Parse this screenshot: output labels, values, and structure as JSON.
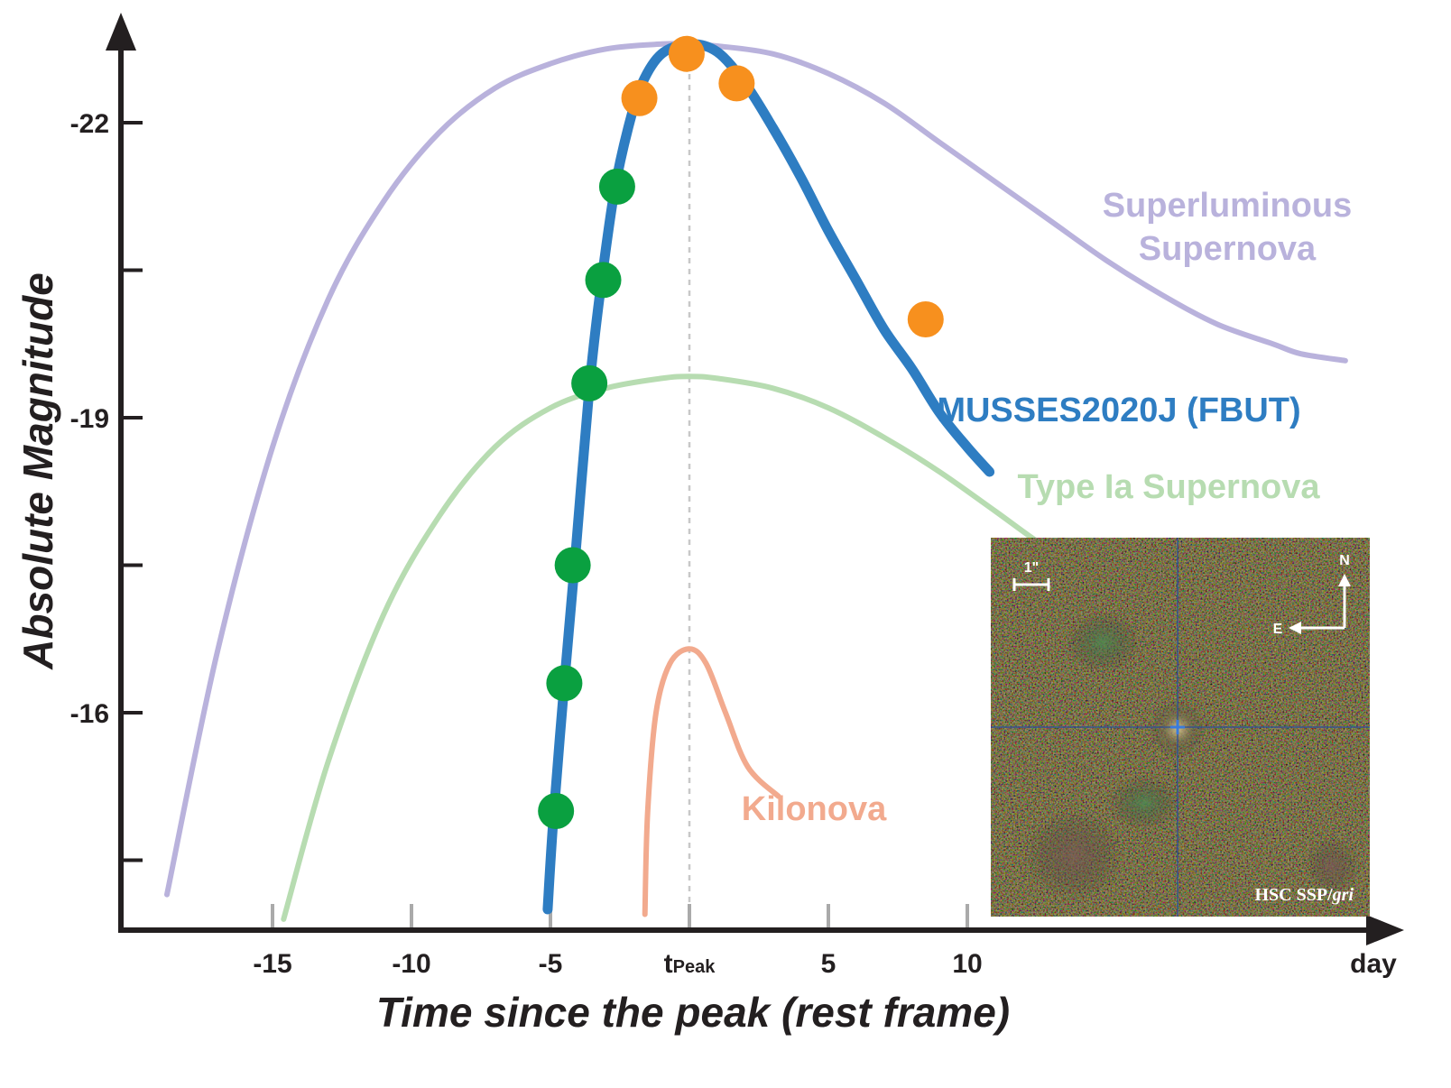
{
  "chart_data": {
    "type": "line",
    "xlabel": "Time since the peak (rest frame)",
    "ylabel": "Absolute Magnitude",
    "x_unit": "day",
    "x_range": [
      -20,
      26
    ],
    "y_range": [
      -14.0,
      -23.0
    ],
    "y_inverted": true,
    "x_ticks": [
      {
        "value": -15,
        "label": "-15"
      },
      {
        "value": -10,
        "label": "-10"
      },
      {
        "value": -5,
        "label": "-5"
      },
      {
        "value": 0,
        "label": "t",
        "sub": "Peak"
      },
      {
        "value": 5,
        "label": "5"
      },
      {
        "value": 10,
        "label": "10"
      }
    ],
    "y_major_ticks": [
      {
        "value": -22,
        "label": "-22"
      },
      {
        "value": -19,
        "label": "-19"
      },
      {
        "value": -16,
        "label": "-16"
      }
    ],
    "y_minor_ticks": [
      -20.5,
      -17.5,
      -14.5
    ],
    "peak_line": {
      "x": 0,
      "color": "#c8c8c8"
    },
    "series": [
      {
        "name": "Superluminous Supernova",
        "label_lines": [
          "Superluminous",
          "Supernova"
        ],
        "color": "#b9b2dc",
        "curve": [
          [
            -18.8,
            -14.15
          ],
          [
            -17,
            -16.6
          ],
          [
            -15,
            -18.7
          ],
          [
            -13,
            -20.2
          ],
          [
            -11,
            -21.2
          ],
          [
            -9,
            -21.9
          ],
          [
            -7,
            -22.35
          ],
          [
            -5,
            -22.6
          ],
          [
            -3,
            -22.75
          ],
          [
            -1,
            -22.8
          ],
          [
            0,
            -22.8
          ],
          [
            1,
            -22.78
          ],
          [
            3,
            -22.7
          ],
          [
            5,
            -22.5
          ],
          [
            7,
            -22.2
          ],
          [
            9,
            -21.8
          ],
          [
            11,
            -21.4
          ],
          [
            13,
            -21.0
          ],
          [
            15,
            -20.6
          ],
          [
            17,
            -20.25
          ],
          [
            19,
            -19.95
          ],
          [
            21,
            -19.75
          ],
          [
            22,
            -19.65
          ],
          [
            23.6,
            -19.58
          ]
        ]
      },
      {
        "name": "Type Ia Supernova",
        "label_lines": [
          "Type Ia Supernova"
        ],
        "color": "#b7dcb1",
        "curve": [
          [
            -14.6,
            -13.9
          ],
          [
            -13,
            -15.5
          ],
          [
            -11,
            -17.0
          ],
          [
            -9,
            -18.0
          ],
          [
            -7,
            -18.7
          ],
          [
            -5,
            -19.1
          ],
          [
            -3,
            -19.3
          ],
          [
            -1,
            -19.4
          ],
          [
            0,
            -19.42
          ],
          [
            1,
            -19.4
          ],
          [
            3,
            -19.3
          ],
          [
            5,
            -19.1
          ],
          [
            7,
            -18.8
          ],
          [
            9,
            -18.45
          ],
          [
            11,
            -18.05
          ],
          [
            13,
            -17.65
          ],
          [
            15,
            -17.35
          ],
          [
            16,
            -17.2
          ],
          [
            17,
            -17.05
          ],
          [
            15.5,
            -17.25
          ]
        ]
      },
      {
        "name": "Kilonova",
        "label_lines": [
          "Kilonova"
        ],
        "color": "#f2aa8e",
        "curve": [
          [
            -1.6,
            -13.95
          ],
          [
            -1.5,
            -15.0
          ],
          [
            -1.2,
            -16.0
          ],
          [
            -0.7,
            -16.5
          ],
          [
            0,
            -16.65
          ],
          [
            0.6,
            -16.5
          ],
          [
            1.3,
            -16.0
          ],
          [
            2.1,
            -15.45
          ],
          [
            3.2,
            -15.15
          ]
        ]
      },
      {
        "name": "MUSSES2020J (FBUT)",
        "label_lines": [
          "MUSSES2020J (FBUT)"
        ],
        "color": "#2e7dc2",
        "curve": [
          [
            -5.1,
            -14.0
          ],
          [
            -4.9,
            -14.9
          ],
          [
            -4.5,
            -16.3
          ],
          [
            -4.1,
            -17.6
          ],
          [
            -3.6,
            -19.3
          ],
          [
            -3.2,
            -20.3
          ],
          [
            -2.7,
            -21.3
          ],
          [
            -2.2,
            -21.95
          ],
          [
            -1.7,
            -22.4
          ],
          [
            -1,
            -22.7
          ],
          [
            0,
            -22.8
          ],
          [
            1,
            -22.72
          ],
          [
            2,
            -22.4
          ],
          [
            3,
            -21.95
          ],
          [
            4,
            -21.45
          ],
          [
            5,
            -20.9
          ],
          [
            6,
            -20.4
          ],
          [
            7,
            -19.9
          ],
          [
            8,
            -19.5
          ],
          [
            9,
            -19.05
          ],
          [
            10,
            -18.7
          ],
          [
            10.8,
            -18.45
          ]
        ],
        "points": [
          {
            "x": -4.8,
            "y": -15.0,
            "color": "#0aa040"
          },
          {
            "x": -4.5,
            "y": -16.3,
            "color": "#0aa040"
          },
          {
            "x": -4.2,
            "y": -17.5,
            "color": "#0aa040"
          },
          {
            "x": -3.6,
            "y": -19.35,
            "color": "#0aa040"
          },
          {
            "x": -3.1,
            "y": -20.4,
            "color": "#0aa040"
          },
          {
            "x": -2.6,
            "y": -21.35,
            "color": "#0aa040"
          },
          {
            "x": -1.8,
            "y": -22.25,
            "color": "#f7901e"
          },
          {
            "x": -0.1,
            "y": -22.7,
            "color": "#f7901e"
          },
          {
            "x": 1.7,
            "y": -22.4,
            "color": "#f7901e"
          },
          {
            "x": 8.5,
            "y": -20.0,
            "color": "#f7901e"
          }
        ]
      }
    ],
    "inset": {
      "caption": "HSC SSP/",
      "caption_italic": "gri",
      "scale_label": "1\"",
      "north_label": "N",
      "east_label": "E"
    }
  }
}
